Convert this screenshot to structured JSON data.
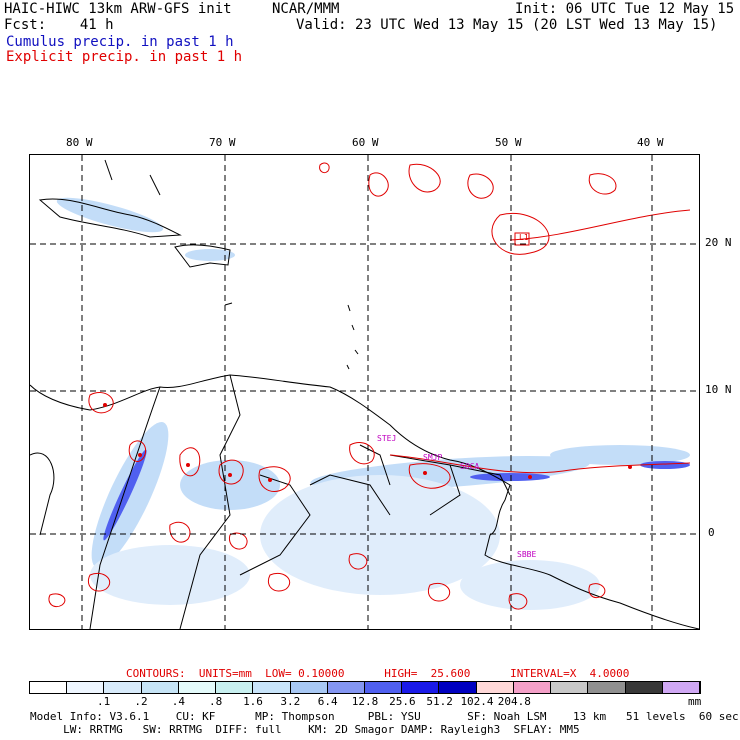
{
  "header": {
    "model_title": "HAIC-HIWC 13km ARW-GFS init",
    "org": "NCAR/MMM",
    "forecast": "Fcst:    41 h",
    "init": "Init: 06 UTC Tue 12 May 15",
    "valid": "Valid: 23 UTC Wed 13 May 15 (20 LST Wed 13 May 15)",
    "field1": "Cumulus precip. in past 1 h",
    "field2": "Explicit precip. in past 1 h"
  },
  "colors": {
    "cumulus_label": "#1010c0",
    "explicit_label": "#e00000",
    "explicit_contour": "#e00000",
    "site_label": "#c000c0"
  },
  "map": {
    "lon_labels": [
      "80 W",
      "70 W",
      "60 W",
      "50 W",
      "40 W"
    ],
    "lat_labels": [
      "20 N",
      "10 N",
      "0"
    ],
    "stations": [
      "STEJ",
      "SMJP",
      "SOCA",
      "SBBE"
    ],
    "highlight_label": "L1"
  },
  "contour_info": "CONTOURS:  UNITS=mm  LOW= 0.10000      HIGH=  25.600      INTERVAL=X  4.0000",
  "colorbar": {
    "colors": [
      "#ffffff",
      "#eef6ff",
      "#d8ebfb",
      "#c6e4f6",
      "#e4fbfb",
      "#c8f0f0",
      "#c8e4fa",
      "#a8c8f4",
      "#8496f2",
      "#5060f0",
      "#1a1ae8",
      "#0000c0",
      "#ffd8d8",
      "#f4a0c8",
      "#c8c8c8",
      "#909090",
      "#383838",
      "#d0a8f4"
    ],
    "labels": [
      ".1",
      ".2",
      ".4",
      ".8",
      "1.6",
      "3.2",
      "6.4",
      "12.8",
      "25.6",
      "51.2",
      "102.4",
      "204.8"
    ],
    "units": "mm"
  },
  "footer": {
    "line1": "Model Info: V3.6.1    CU: KF      MP: Thompson     PBL: YSU       SF: Noah LSM    13 km   51 levels  60 sec",
    "line2": "     LW: RRTMG   SW: RRTMG  DIFF: full    KM: 2D Smagor DAMP: Rayleigh3  SFLAY: MM5"
  }
}
